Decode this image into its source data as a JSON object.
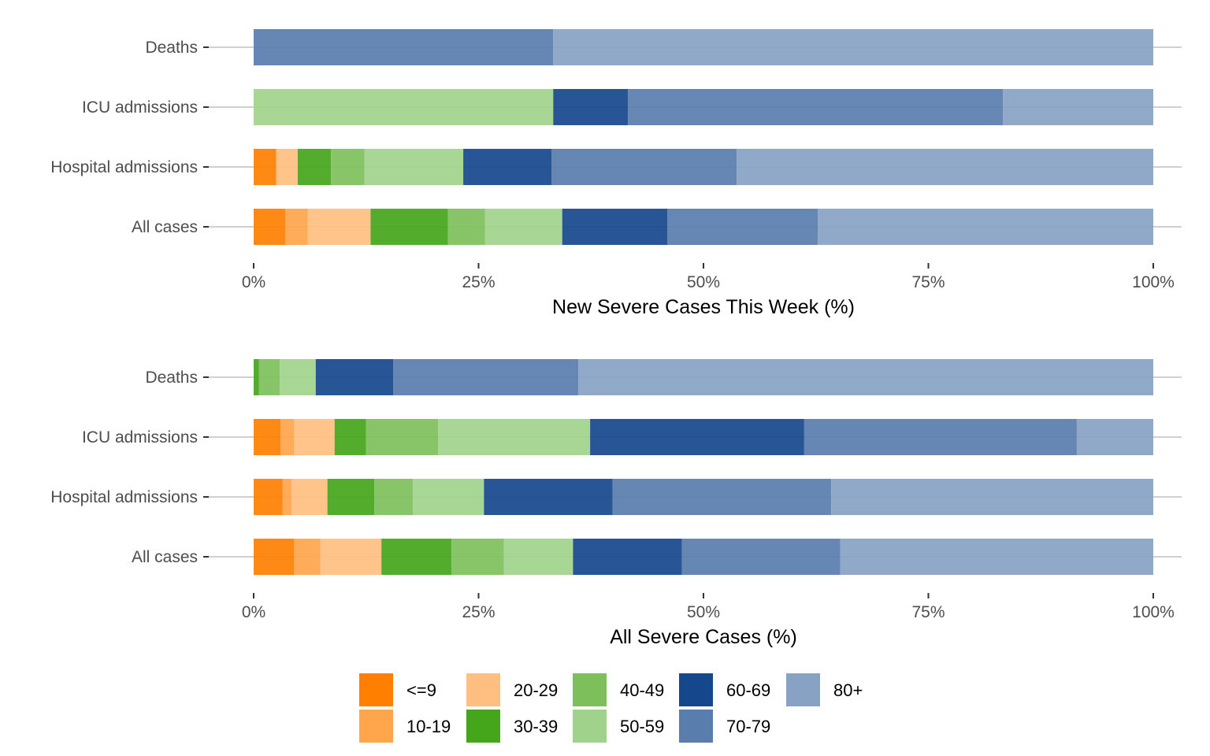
{
  "legend": {
    "title": "",
    "placement": "bottom",
    "items": [
      {
        "label": "<=9",
        "color": "#FF7F00"
      },
      {
        "label": "10-19",
        "color": "#FFA54C"
      },
      {
        "label": "20-29",
        "color": "#FFBF80"
      },
      {
        "label": "30-39",
        "color": "#45A51B"
      },
      {
        "label": "40-49",
        "color": "#7DC05B"
      },
      {
        "label": "50-59",
        "color": "#A1D28B"
      },
      {
        "label": "60-69",
        "color": "#15478C"
      },
      {
        "label": "70-79",
        "color": "#597DAD"
      },
      {
        "label": "80+",
        "color": "#88A2C4"
      }
    ]
  },
  "chart_data": [
    {
      "type": "bar",
      "orientation": "horizontal",
      "stacked": true,
      "title": "",
      "xlabel": "New Severe Cases This Week (%)",
      "ylabel": "",
      "xlim": [
        0,
        100
      ],
      "xticks": [
        "0%",
        "25%",
        "50%",
        "75%",
        "100%"
      ],
      "xtick_values": [
        0,
        25,
        50,
        75,
        100
      ],
      "grid": "horizontal major",
      "categories": [
        "Deaths",
        "ICU admissions",
        "Hospital admissions",
        "All cases"
      ],
      "series": [
        {
          "name": "<=9",
          "values": [
            0,
            0,
            2.5,
            3.5
          ]
        },
        {
          "name": "10-19",
          "values": [
            0,
            0,
            0,
            2.5
          ]
        },
        {
          "name": "20-29",
          "values": [
            0,
            0,
            2.4,
            7.0
          ]
        },
        {
          "name": "30-39",
          "values": [
            0,
            0,
            3.7,
            8.6
          ]
        },
        {
          "name": "40-49",
          "values": [
            0,
            0,
            3.7,
            4.1
          ]
        },
        {
          "name": "50-59",
          "values": [
            0,
            33.3,
            11.0,
            8.6
          ]
        },
        {
          "name": "60-69",
          "values": [
            0,
            8.3,
            9.8,
            11.7
          ]
        },
        {
          "name": "70-79",
          "values": [
            33.3,
            41.7,
            20.6,
            16.7
          ]
        },
        {
          "name": "80+",
          "values": [
            66.7,
            16.7,
            46.3,
            37.3
          ]
        }
      ]
    },
    {
      "type": "bar",
      "orientation": "horizontal",
      "stacked": true,
      "title": "",
      "xlabel": "All Severe Cases (%)",
      "ylabel": "",
      "xlim": [
        0,
        100
      ],
      "xticks": [
        "0%",
        "25%",
        "50%",
        "75%",
        "100%"
      ],
      "xtick_values": [
        0,
        25,
        50,
        75,
        100
      ],
      "grid": "horizontal major",
      "categories": [
        "Deaths",
        "ICU admissions",
        "Hospital admissions",
        "All cases"
      ],
      "series": [
        {
          "name": "<=9",
          "values": [
            0,
            3.0,
            3.2,
            4.5
          ]
        },
        {
          "name": "10-19",
          "values": [
            0,
            1.5,
            1.0,
            2.9
          ]
        },
        {
          "name": "20-29",
          "values": [
            0,
            4.5,
            4.0,
            6.8
          ]
        },
        {
          "name": "30-39",
          "values": [
            0.6,
            3.5,
            5.2,
            7.8
          ]
        },
        {
          "name": "40-49",
          "values": [
            2.3,
            8.0,
            4.3,
            5.8
          ]
        },
        {
          "name": "50-59",
          "values": [
            4.0,
            16.9,
            7.9,
            7.7
          ]
        },
        {
          "name": "60-69",
          "values": [
            8.6,
            23.8,
            14.3,
            12.1
          ]
        },
        {
          "name": "70-79",
          "values": [
            20.6,
            30.3,
            24.3,
            17.6
          ]
        },
        {
          "name": "80+",
          "values": [
            63.9,
            8.5,
            35.8,
            34.8
          ]
        }
      ]
    }
  ]
}
